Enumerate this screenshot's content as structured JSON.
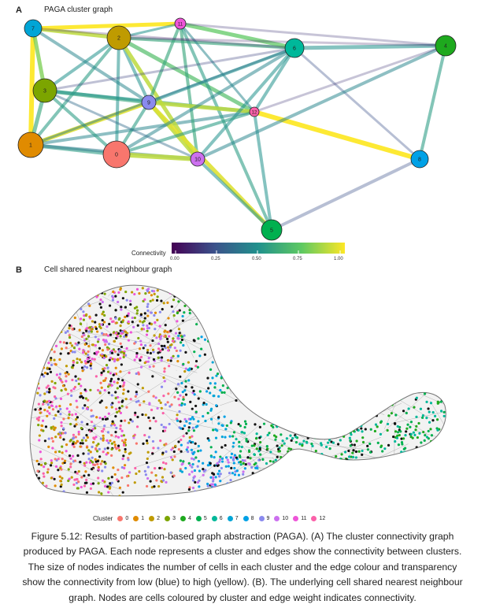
{
  "panel_a": {
    "letter": "A",
    "title": "PAGA cluster graph",
    "colorbar": {
      "title": "Connectivity",
      "ticks": [
        "0.00",
        "0.25",
        "0.50",
        "0.75",
        "1.00"
      ]
    },
    "nodes": [
      {
        "id": "0",
        "color": "#f8766d"
      },
      {
        "id": "1",
        "color": "#e08b00"
      },
      {
        "id": "2",
        "color": "#bf9b00"
      },
      {
        "id": "3",
        "color": "#7ca500"
      },
      {
        "id": "4",
        "color": "#1ea91e"
      },
      {
        "id": "5",
        "color": "#00b04f"
      },
      {
        "id": "6",
        "color": "#00b89a"
      },
      {
        "id": "7",
        "color": "#00a5d6"
      },
      {
        "id": "8",
        "color": "#00a1e6"
      },
      {
        "id": "9",
        "color": "#8a8aee"
      },
      {
        "id": "10",
        "color": "#cc70ef"
      },
      {
        "id": "11",
        "color": "#ee55d8"
      },
      {
        "id": "12",
        "color": "#fb61a9"
      }
    ]
  },
  "panel_b": {
    "letter": "B",
    "title": "Cell shared nearest neighbour graph",
    "legend_title": "Cluster",
    "clusters": [
      {
        "label": "0",
        "color": "#f8766d"
      },
      {
        "label": "1",
        "color": "#e08b00"
      },
      {
        "label": "2",
        "color": "#bf9b00"
      },
      {
        "label": "3",
        "color": "#7ca500"
      },
      {
        "label": "4",
        "color": "#1ea91e"
      },
      {
        "label": "5",
        "color": "#00b04f"
      },
      {
        "label": "6",
        "color": "#00b89a"
      },
      {
        "label": "7",
        "color": "#00a5d6"
      },
      {
        "label": "8",
        "color": "#00a1e6"
      },
      {
        "label": "9",
        "color": "#8a8aee"
      },
      {
        "label": "10",
        "color": "#cc70ef"
      },
      {
        "label": "11",
        "color": "#ee55d8"
      },
      {
        "label": "12",
        "color": "#fb61a9"
      }
    ]
  },
  "caption": "Figure 5.12: Results of partition-based graph abstraction (PAGA). (A) The cluster connectivity graph produced by PAGA. Each node represents a cluster and edges show the connectivity between clusters. The size of nodes indicates the number of cells in each cluster and the edge colour and transparency show the connectivity from low (blue) to high (yellow). (B). The underlying cell shared nearest neighbour graph. Nodes are cells coloured by cluster and edge weight indicates connectivity."
}
